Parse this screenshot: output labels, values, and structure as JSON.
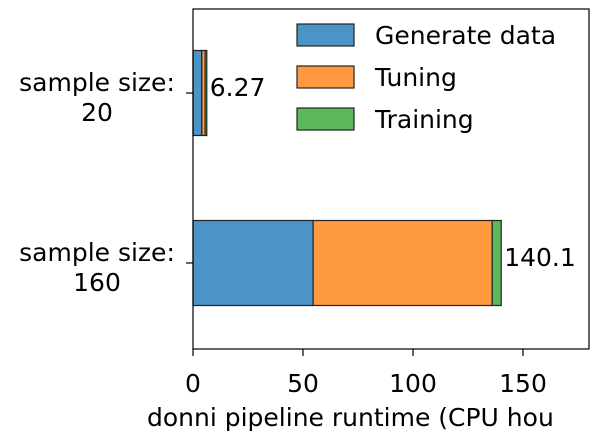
{
  "chart_data": {
    "type": "bar",
    "orientation": "horizontal",
    "stacked": true,
    "categories": [
      "sample size:\n20",
      "sample size:\n160"
    ],
    "series": [
      {
        "name": "Generate data",
        "values": [
          4.0,
          54.6
        ],
        "color": "#4c93c6"
      },
      {
        "name": "Tuning",
        "values": [
          1.5,
          81.4
        ],
        "color": "#ff9a40"
      },
      {
        "name": "Training",
        "values": [
          0.77,
          4.1
        ],
        "color": "#5cb85c"
      }
    ],
    "totals": [
      "6.27",
      "140.1"
    ],
    "xlabel": "donni pipeline runtime (CPU hou",
    "ylabel": "",
    "xlim": [
      0,
      180
    ],
    "xticks": [
      0,
      50,
      100,
      150
    ],
    "legend": "top-right",
    "grid": false
  }
}
